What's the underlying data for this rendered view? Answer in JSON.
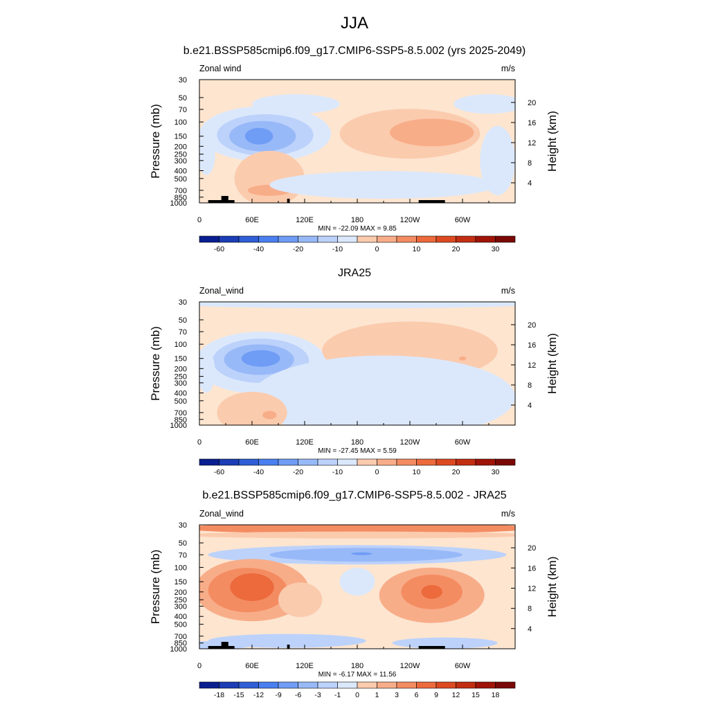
{
  "title": "JJA",
  "chart_data": [
    {
      "type": "heatmap",
      "title": "b.e21.BSSP585cmip6.f09_g17.CMIP6-SSP5-8.5.002 (yrs 2025-2049)",
      "left_label": "Zonal wind",
      "units": "m/s",
      "ylabel": "Pressure (mb)",
      "ylabel_right": "Height (km)",
      "xticks": [
        "0",
        "60E",
        "120E",
        "180",
        "120W",
        "60W"
      ],
      "yticks": [
        "30",
        "50",
        "70",
        "100",
        "150",
        "200",
        "250",
        "300",
        "400",
        "500",
        "700",
        "850",
        "1000"
      ],
      "yticks_right": [
        "20",
        "16",
        "12",
        "8",
        "4"
      ],
      "stats": "MIN = -22.09  MAX =   9.85",
      "colorbar_labels": [
        "-60",
        "-40",
        "-20",
        "-10",
        "0",
        "10",
        "20",
        "30"
      ]
    },
    {
      "type": "heatmap",
      "title": "JRA25",
      "left_label": "Zonal_wind",
      "units": "m/s",
      "ylabel": "Pressure (mb)",
      "ylabel_right": "Height (km)",
      "xticks": [
        "0",
        "60E",
        "120E",
        "180",
        "120W",
        "60W"
      ],
      "yticks": [
        "30",
        "50",
        "70",
        "100",
        "150",
        "200",
        "250",
        "300",
        "400",
        "500",
        "700",
        "850",
        "1000"
      ],
      "yticks_right": [
        "20",
        "16",
        "12",
        "8",
        "4"
      ],
      "stats": "MIN = -27.45  MAX =   5.59",
      "colorbar_labels": [
        "-60",
        "-40",
        "-20",
        "-10",
        "0",
        "10",
        "20",
        "30"
      ]
    },
    {
      "type": "heatmap",
      "title": "b.e21.BSSP585cmip6.f09_g17.CMIP6-SSP5-8.5.002 - JRA25",
      "left_label": "Zonal_wind",
      "units": "m/s",
      "ylabel": "Pressure (mb)",
      "ylabel_right": "Height (km)",
      "xticks": [
        "0",
        "60E",
        "120E",
        "180",
        "120W",
        "60W"
      ],
      "yticks": [
        "30",
        "50",
        "70",
        "100",
        "150",
        "200",
        "250",
        "300",
        "400",
        "500",
        "700",
        "850",
        "1000"
      ],
      "yticks_right": [
        "20",
        "16",
        "12",
        "8",
        "4"
      ],
      "stats": "MIN = -6.17  MAX = 11.56",
      "colorbar_labels": [
        "-18",
        "-15",
        "-12",
        "-9",
        "-6",
        "-3",
        "-1",
        "0",
        "1",
        "3",
        "6",
        "9",
        "12",
        "15",
        "18"
      ]
    }
  ],
  "colors": {
    "scale": [
      "#0a1f8f",
      "#1b3db5",
      "#2f5ed6",
      "#4a7ff0",
      "#6f9cf5",
      "#98b9f8",
      "#bcd2fb",
      "#dbe8fc",
      "#fde5d0",
      "#fbcbae",
      "#f8ad89",
      "#f48c62",
      "#ec6a3c",
      "#dd4a22",
      "#c22e12",
      "#a01408",
      "#7a0806"
    ]
  }
}
